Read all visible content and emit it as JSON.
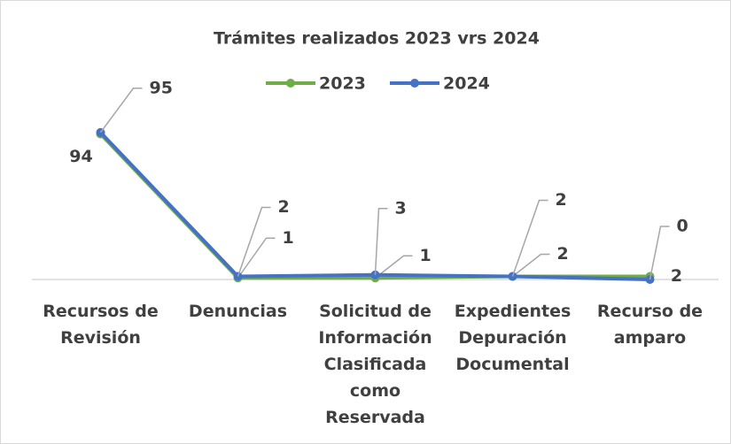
{
  "chart_data": {
    "type": "line",
    "title": "Trámites realizados 2023 vrs 2024",
    "categories": [
      "Recursos de Revisión",
      "Denuncias",
      "Solicitud de Información Clasificada como Reservada",
      "Expedientes Depuración Documental",
      "Recurso de amparo"
    ],
    "series": [
      {
        "name": "2023",
        "color": "#70ad47",
        "values": [
          94,
          1,
          1,
          2,
          2
        ]
      },
      {
        "name": "2024",
        "color": "#4472c4",
        "values": [
          95,
          2,
          3,
          2,
          0
        ]
      }
    ],
    "ylim": [
      0,
      100
    ],
    "legend": "top"
  }
}
